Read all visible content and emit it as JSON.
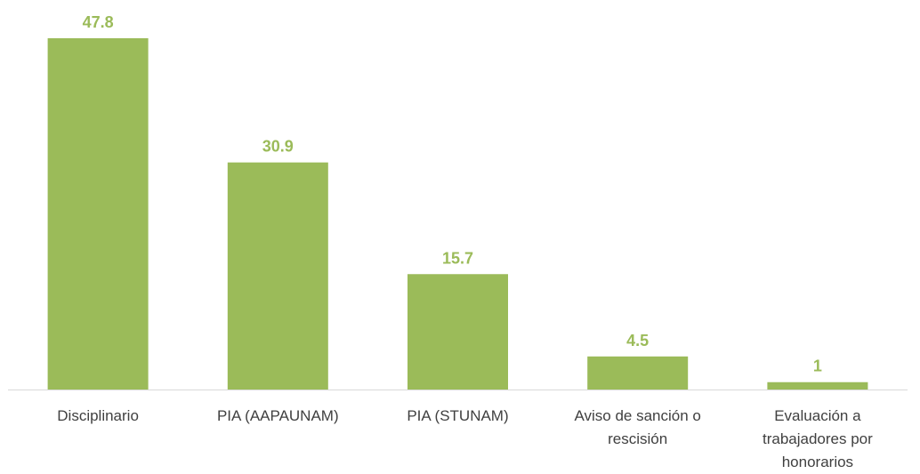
{
  "chart_data": {
    "type": "bar",
    "categories": [
      "Disciplinario",
      "PIA (AAPAUNAM)",
      "PIA (STUNAM)",
      "Aviso de sanción o rescisión",
      "Evaluación a trabajadores por honorarios"
    ],
    "values": [
      47.8,
      30.9,
      15.7,
      4.5,
      1
    ],
    "color": "#9bbb59"
  }
}
